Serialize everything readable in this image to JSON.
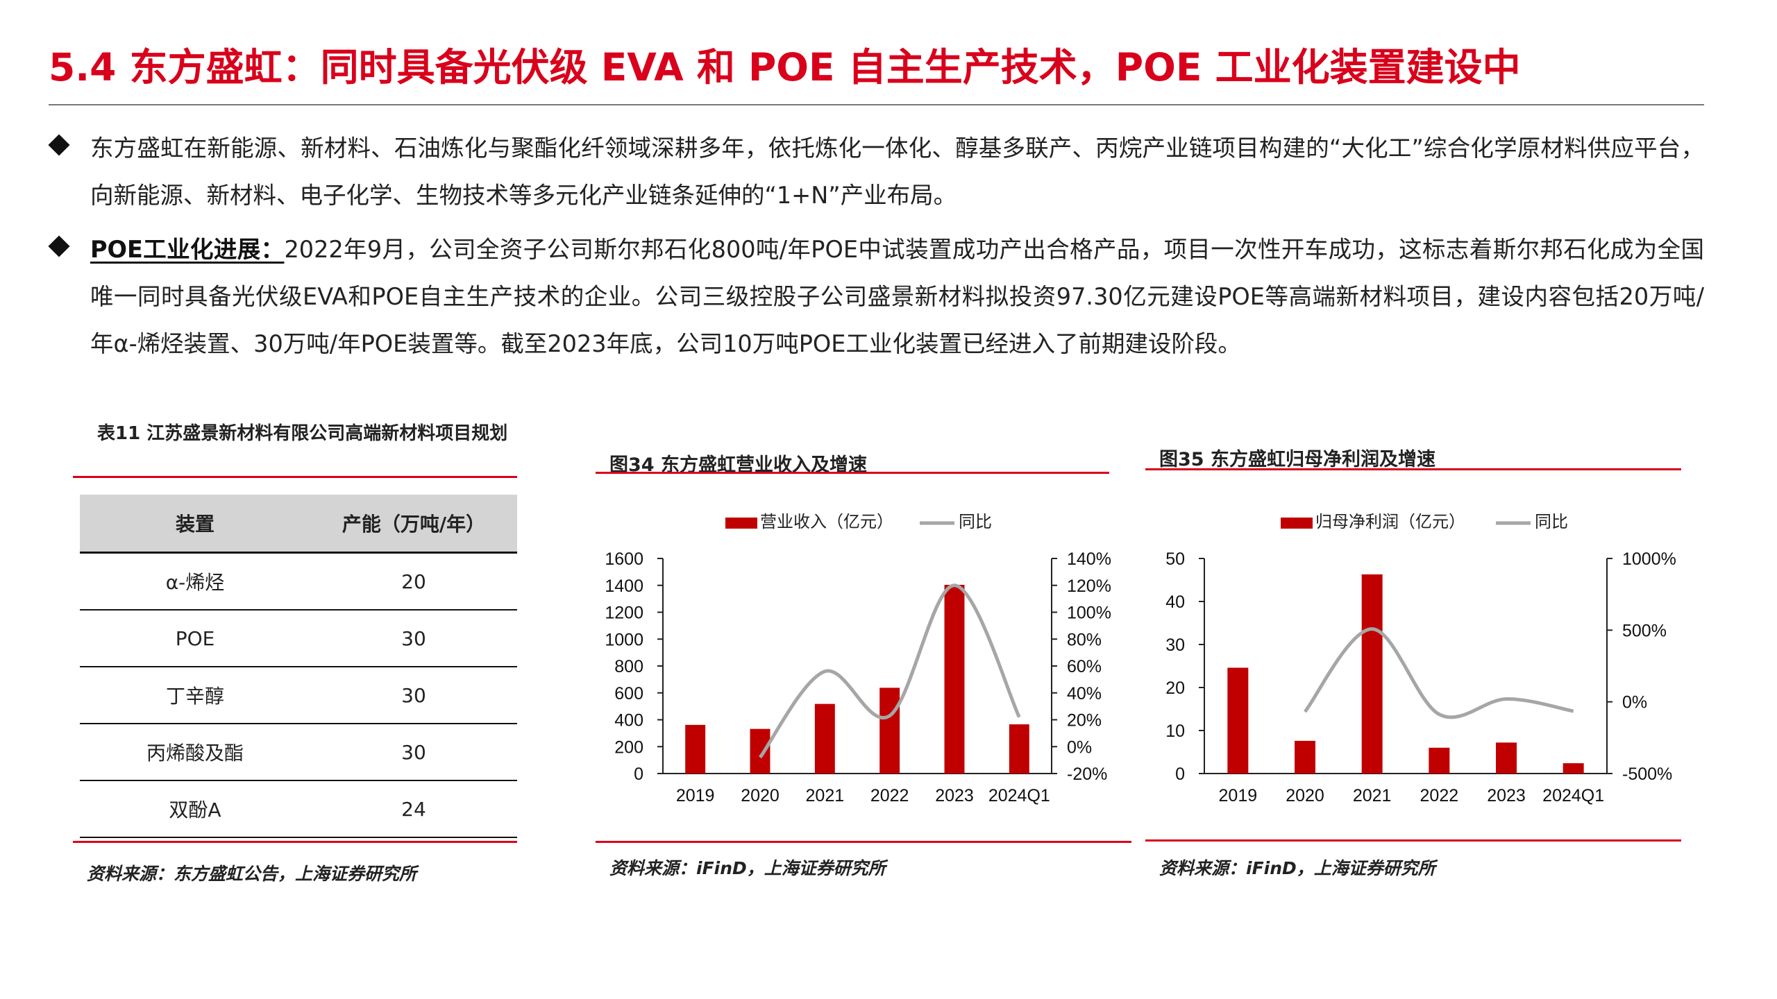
{
  "title": "5.4 东方盛虹：同时具备光伏级 EVA 和 POE 自主生产技术，POE 工业化装置建设中",
  "bullets": [
    {
      "lead": "",
      "text": "东方盛虹在新能源、新材料、石油炼化与聚酯化纤领域深耕多年，依托炼化一体化、醇基多联产、丙烷产业链项目构建的“大化工”综合化学原材料供应平台，向新能源、新材料、电子化学、生物技术等多元化产业链条延伸的“1+N”产业布局。"
    },
    {
      "lead": "POE工业化进展：",
      "text": "2022年9月，公司全资子公司斯尔邦石化800吨/年POE中试装置成功产出合格产品，项目一次性开车成功，这标志着斯尔邦石化成为全国唯一同时具备光伏级EVA和POE自主生产技术的企业。公司三级控股子公司盛景新材料拟投资97.30亿元建设POE等高端新材料项目，建设内容包括20万吨/年α-烯烃装置、30万吨/年POE装置等。截至2023年底，公司10万吨POE工业化装置已经进入了前期建设阶段。"
    }
  ],
  "table": {
    "title": "表11 江苏盛景新材料有限公司高端新材料项目规划",
    "headers": [
      "装置",
      "产能（万吨/年）"
    ],
    "rows": [
      [
        "α-烯烃",
        "20"
      ],
      [
        "POE",
        "30"
      ],
      [
        "丁辛醇",
        "30"
      ],
      [
        "丙烯酸及酯",
        "30"
      ],
      [
        "双酚A",
        "24"
      ]
    ],
    "source": "资料来源：东方盛虹公告，上海证券研究所"
  },
  "charts": {
    "fig34_title": "图34 东方盛虹营业收入及增速",
    "fig34_source": "资料来源：iFinD，上海证券研究所",
    "fig35_title": "图35 东方盛虹归母净利润及增速",
    "fig35_source": "资料来源：iFinD，上海证券研究所"
  },
  "colors": {
    "accent": "#d9001b",
    "bar": "#c00000",
    "line": "#a6a6a6"
  },
  "chart_data": [
    {
      "type": "bar",
      "title": "图34 东方盛虹营业收入及增速",
      "categories": [
        "2019",
        "2020",
        "2021",
        "2022",
        "2023",
        "2024Q1"
      ],
      "series": [
        {
          "name": "营业收入（亿元）",
          "type": "bar",
          "axis": "left",
          "values": [
            362,
            332,
            518,
            638,
            1404,
            366
          ]
        },
        {
          "name": "同比",
          "type": "line",
          "axis": "right",
          "values": [
            null,
            -8,
            56,
            23,
            120,
            22
          ]
        }
      ],
      "ylim_left": [
        0,
        1600
      ],
      "yticks_left": [
        "0",
        "200",
        "400",
        "600",
        "800",
        "1000",
        "1200",
        "1400",
        "1600"
      ],
      "ylim_right": [
        -20,
        140
      ],
      "yticks_right": [
        "-20%",
        "0%",
        "20%",
        "40%",
        "60%",
        "80%",
        "100%",
        "120%",
        "140%"
      ],
      "legend": "top"
    },
    {
      "type": "bar",
      "title": "图35 东方盛虹归母净利润及增速",
      "categories": [
        "2019",
        "2020",
        "2021",
        "2022",
        "2023",
        "2024Q1"
      ],
      "series": [
        {
          "name": "归母净利润（亿元）",
          "type": "bar",
          "axis": "left",
          "values": [
            24.6,
            7.6,
            46.3,
            6.0,
            7.2,
            2.4
          ]
        },
        {
          "name": "同比",
          "type": "line",
          "axis": "right",
          "values": [
            null,
            -69,
            508,
            -87,
            20,
            -65
          ]
        }
      ],
      "ylim_left": [
        0,
        50
      ],
      "yticks_left": [
        "0",
        "10",
        "20",
        "30",
        "40",
        "50"
      ],
      "ylim_right": [
        -500,
        1000
      ],
      "yticks_right": [
        "-500%",
        "0%",
        "500%",
        "1000%"
      ],
      "legend": "top"
    }
  ]
}
